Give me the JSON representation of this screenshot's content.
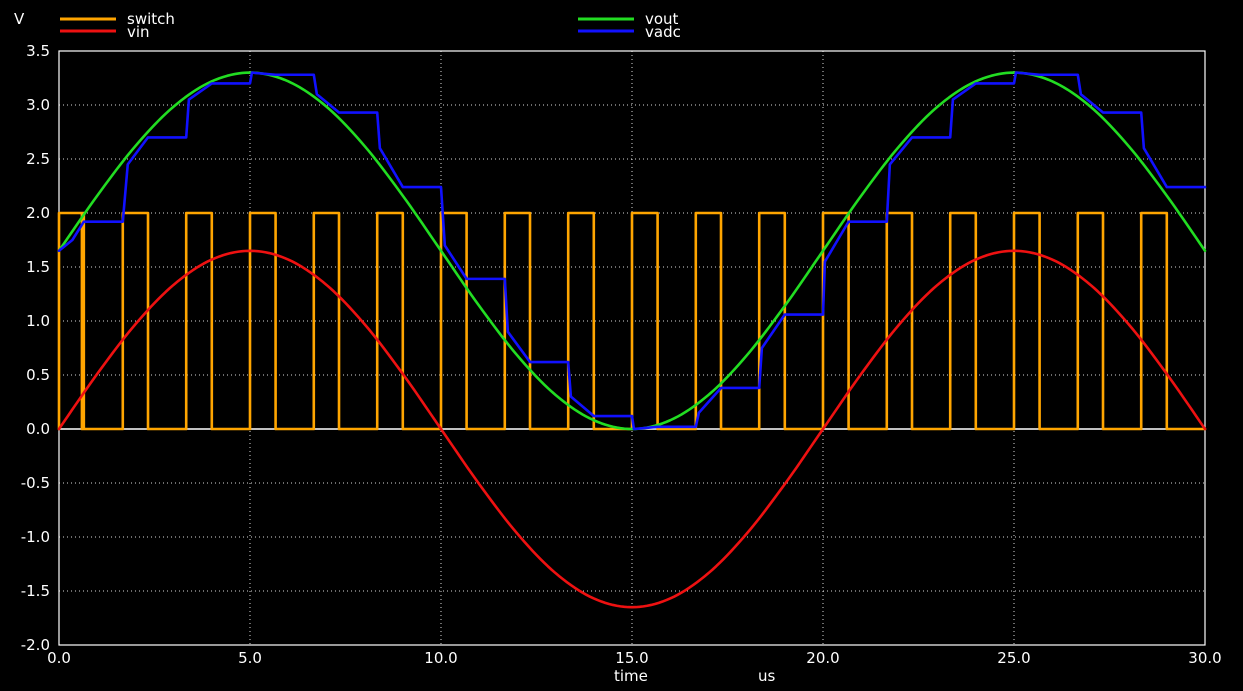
{
  "chart_data": {
    "type": "line",
    "ylabel": "V",
    "xlabel": "time",
    "xunit": "us",
    "xlim": [
      0,
      30
    ],
    "ylim": [
      -2.0,
      3.5
    ],
    "xticks": [
      "0.0",
      "5.0",
      "10.0",
      "15.0",
      "20.0",
      "25.0",
      "30.0"
    ],
    "xtick_values": [
      0,
      5,
      10,
      15,
      20,
      25,
      30
    ],
    "yticks": [
      "3.5",
      "3.0",
      "2.5",
      "2.0",
      "1.5",
      "1.0",
      "0.5",
      "0.0",
      "-0.5",
      "-1.0",
      "-1.5",
      "-2.0"
    ],
    "ytick_values": [
      3.5,
      3.0,
      2.5,
      2.0,
      1.5,
      1.0,
      0.5,
      0.0,
      -0.5,
      -1.0,
      -1.5,
      -2.0
    ],
    "grid": true,
    "legend_placement": "top",
    "series": [
      {
        "name": "switch",
        "color": "#ffa500",
        "kind": "step",
        "points": [
          [
            0.0,
            0.0
          ],
          [
            0.0,
            2.0
          ],
          [
            0.6,
            2.0
          ],
          [
            0.6,
            0.0
          ],
          [
            0.6,
            0.0
          ],
          [
            0.6,
            2.0
          ],
          [
            0.65,
            2.0
          ],
          [
            0.65,
            0.0
          ],
          [
            1.67,
            0.0
          ],
          [
            1.67,
            2.0
          ],
          [
            2.33,
            2.0
          ],
          [
            2.33,
            0.0
          ],
          [
            3.33,
            0.0
          ],
          [
            3.33,
            2.0
          ],
          [
            4.0,
            2.0
          ],
          [
            4.0,
            0.0
          ],
          [
            5.0,
            0.0
          ],
          [
            5.0,
            2.0
          ],
          [
            5.67,
            2.0
          ],
          [
            5.67,
            0.0
          ],
          [
            6.67,
            0.0
          ],
          [
            6.67,
            2.0
          ],
          [
            7.33,
            2.0
          ],
          [
            7.33,
            0.0
          ],
          [
            8.33,
            0.0
          ],
          [
            8.33,
            2.0
          ],
          [
            9.0,
            2.0
          ],
          [
            9.0,
            0.0
          ],
          [
            10.0,
            0.0
          ],
          [
            10.0,
            2.0
          ],
          [
            10.67,
            2.0
          ],
          [
            10.67,
            0.0
          ],
          [
            11.67,
            0.0
          ],
          [
            11.67,
            2.0
          ],
          [
            12.33,
            2.0
          ],
          [
            12.33,
            0.0
          ],
          [
            13.33,
            0.0
          ],
          [
            13.33,
            2.0
          ],
          [
            14.0,
            2.0
          ],
          [
            14.0,
            0.0
          ],
          [
            15.0,
            0.0
          ],
          [
            15.0,
            2.0
          ],
          [
            15.67,
            2.0
          ],
          [
            15.67,
            0.0
          ],
          [
            16.67,
            0.0
          ],
          [
            16.67,
            2.0
          ],
          [
            17.33,
            2.0
          ],
          [
            17.33,
            0.0
          ],
          [
            18.33,
            0.0
          ],
          [
            18.33,
            2.0
          ],
          [
            19.0,
            2.0
          ],
          [
            19.0,
            0.0
          ],
          [
            20.0,
            0.0
          ],
          [
            20.0,
            2.0
          ],
          [
            20.67,
            2.0
          ],
          [
            20.67,
            0.0
          ],
          [
            21.67,
            0.0
          ],
          [
            21.67,
            2.0
          ],
          [
            22.33,
            2.0
          ],
          [
            22.33,
            0.0
          ],
          [
            23.33,
            0.0
          ],
          [
            23.33,
            2.0
          ],
          [
            24.0,
            2.0
          ],
          [
            24.0,
            0.0
          ],
          [
            25.0,
            0.0
          ],
          [
            25.0,
            2.0
          ],
          [
            25.67,
            2.0
          ],
          [
            25.67,
            0.0
          ],
          [
            26.67,
            0.0
          ],
          [
            26.67,
            2.0
          ],
          [
            27.33,
            2.0
          ],
          [
            27.33,
            0.0
          ],
          [
            28.33,
            0.0
          ],
          [
            28.33,
            2.0
          ],
          [
            29.0,
            2.0
          ],
          [
            29.0,
            0.0
          ],
          [
            30.0,
            0.0
          ]
        ]
      },
      {
        "name": "vin",
        "color": "#ee1111",
        "kind": "line",
        "points": [
          [
            0,
            0.0
          ],
          [
            1,
            0.51
          ],
          [
            2,
            0.97
          ],
          [
            3,
            1.335
          ],
          [
            4,
            1.569
          ],
          [
            5,
            1.65
          ],
          [
            6,
            1.569
          ],
          [
            7,
            1.335
          ],
          [
            8,
            0.97
          ],
          [
            9,
            0.51
          ],
          [
            10,
            0.0
          ],
          [
            11,
            -0.51
          ],
          [
            12,
            -0.97
          ],
          [
            13,
            -1.335
          ],
          [
            14,
            -1.569
          ],
          [
            15,
            -1.65
          ],
          [
            16,
            -1.569
          ],
          [
            17,
            -1.335
          ],
          [
            18,
            -0.97
          ],
          [
            19,
            -0.51
          ],
          [
            20,
            0.0
          ],
          [
            21,
            0.51
          ],
          [
            22,
            0.97
          ],
          [
            23,
            1.335
          ],
          [
            24,
            1.569
          ],
          [
            25,
            1.65
          ],
          [
            26,
            1.569
          ],
          [
            27,
            1.335
          ],
          [
            28,
            0.97
          ],
          [
            29,
            0.51
          ],
          [
            30,
            0.0
          ]
        ]
      },
      {
        "name": "vout",
        "color": "#22dd22",
        "kind": "line",
        "points": [
          [
            0,
            1.65
          ],
          [
            1,
            2.16
          ],
          [
            2,
            2.62
          ],
          [
            3,
            2.985
          ],
          [
            4,
            3.219
          ],
          [
            5,
            3.3
          ],
          [
            6,
            3.219
          ],
          [
            7,
            2.985
          ],
          [
            8,
            2.62
          ],
          [
            9,
            2.16
          ],
          [
            10,
            1.65
          ],
          [
            11,
            1.14
          ],
          [
            12,
            0.68
          ],
          [
            13,
            0.315
          ],
          [
            14,
            0.081
          ],
          [
            15,
            0.0
          ],
          [
            16,
            0.081
          ],
          [
            17,
            0.315
          ],
          [
            18,
            0.68
          ],
          [
            19,
            1.14
          ],
          [
            20,
            1.65
          ],
          [
            21,
            2.16
          ],
          [
            22,
            2.62
          ],
          [
            23,
            2.985
          ],
          [
            24,
            3.219
          ],
          [
            25,
            3.3
          ],
          [
            26,
            3.219
          ],
          [
            27,
            2.985
          ],
          [
            28,
            2.62
          ],
          [
            29,
            2.16
          ],
          [
            30,
            1.65
          ]
        ]
      },
      {
        "name": "vadc",
        "color": "#1111ff",
        "kind": "line",
        "points": [
          [
            0.0,
            1.65
          ],
          [
            0.35,
            1.75
          ],
          [
            0.65,
            1.92
          ],
          [
            1.67,
            1.92
          ],
          [
            1.8,
            2.45
          ],
          [
            2.33,
            2.7
          ],
          [
            3.33,
            2.7
          ],
          [
            3.4,
            3.05
          ],
          [
            4.0,
            3.2
          ],
          [
            5.0,
            3.2
          ],
          [
            5.05,
            3.3
          ],
          [
            5.67,
            3.28
          ],
          [
            6.67,
            3.28
          ],
          [
            6.75,
            3.1
          ],
          [
            7.33,
            2.93
          ],
          [
            8.33,
            2.93
          ],
          [
            8.4,
            2.6
          ],
          [
            9.0,
            2.24
          ],
          [
            10.0,
            2.24
          ],
          [
            10.1,
            1.7
          ],
          [
            10.67,
            1.39
          ],
          [
            11.67,
            1.39
          ],
          [
            11.75,
            0.9
          ],
          [
            12.33,
            0.62
          ],
          [
            13.33,
            0.62
          ],
          [
            13.4,
            0.3
          ],
          [
            14.0,
            0.12
          ],
          [
            15.0,
            0.12
          ],
          [
            15.05,
            0.0
          ],
          [
            15.67,
            0.02
          ],
          [
            16.67,
            0.02
          ],
          [
            16.75,
            0.15
          ],
          [
            17.33,
            0.38
          ],
          [
            18.33,
            0.38
          ],
          [
            18.4,
            0.75
          ],
          [
            19.0,
            1.06
          ],
          [
            20.0,
            1.06
          ],
          [
            20.05,
            1.55
          ],
          [
            20.67,
            1.92
          ],
          [
            21.67,
            1.92
          ],
          [
            21.75,
            2.45
          ],
          [
            22.33,
            2.7
          ],
          [
            23.33,
            2.7
          ],
          [
            23.4,
            3.05
          ],
          [
            24.0,
            3.2
          ],
          [
            25.0,
            3.2
          ],
          [
            25.05,
            3.3
          ],
          [
            25.67,
            3.28
          ],
          [
            26.67,
            3.28
          ],
          [
            26.75,
            3.1
          ],
          [
            27.33,
            2.93
          ],
          [
            28.33,
            2.93
          ],
          [
            28.4,
            2.6
          ],
          [
            29.0,
            2.24
          ],
          [
            30.0,
            2.24
          ]
        ]
      }
    ]
  }
}
